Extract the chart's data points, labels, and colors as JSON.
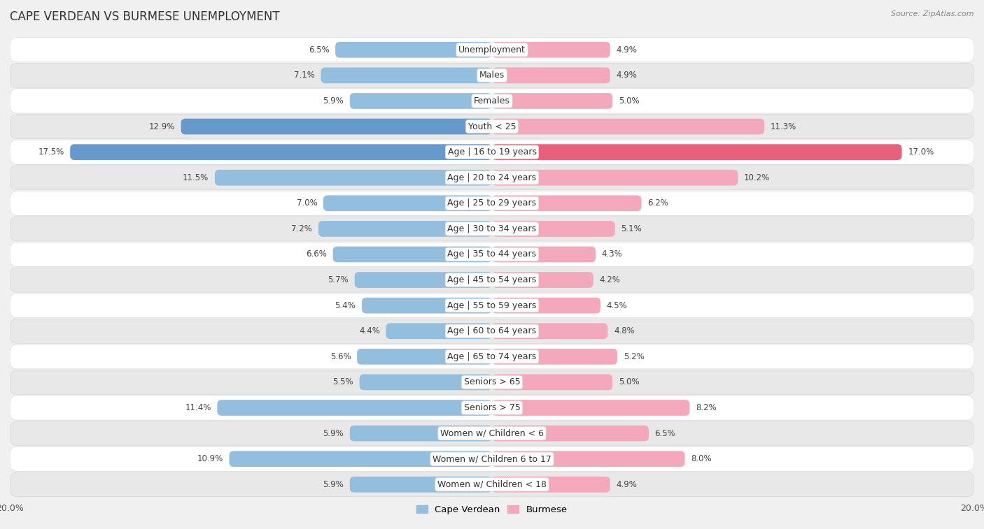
{
  "title": "CAPE VERDEAN VS BURMESE UNEMPLOYMENT",
  "source": "Source: ZipAtlas.com",
  "categories": [
    "Unemployment",
    "Males",
    "Females",
    "Youth < 25",
    "Age | 16 to 19 years",
    "Age | 20 to 24 years",
    "Age | 25 to 29 years",
    "Age | 30 to 34 years",
    "Age | 35 to 44 years",
    "Age | 45 to 54 years",
    "Age | 55 to 59 years",
    "Age | 60 to 64 years",
    "Age | 65 to 74 years",
    "Seniors > 65",
    "Seniors > 75",
    "Women w/ Children < 6",
    "Women w/ Children 6 to 17",
    "Women w/ Children < 18"
  ],
  "cape_verdean": [
    6.5,
    7.1,
    5.9,
    12.9,
    17.5,
    11.5,
    7.0,
    7.2,
    6.6,
    5.7,
    5.4,
    4.4,
    5.6,
    5.5,
    11.4,
    5.9,
    10.9,
    5.9
  ],
  "burmese": [
    4.9,
    4.9,
    5.0,
    11.3,
    17.0,
    10.2,
    6.2,
    5.1,
    4.3,
    4.2,
    4.5,
    4.8,
    5.2,
    5.0,
    8.2,
    6.5,
    8.0,
    4.9
  ],
  "cape_verdean_color": "#94bedd",
  "burmese_color": "#f4a8bc",
  "highlight_cape_verdean_rows": [
    3,
    4
  ],
  "highlight_burmese_rows": [
    4
  ],
  "highlight_cape_verdean_color": "#6699cc",
  "highlight_burmese_color": "#e8607a",
  "bar_height": 0.62,
  "xlim": 20.0,
  "bg_color": "#f0f0f0",
  "row_bg_white": "#ffffff",
  "row_bg_gray": "#e8e8e8",
  "title_fontsize": 12,
  "label_fontsize": 9,
  "value_fontsize": 8.5,
  "legend_fontsize": 9.5,
  "axis_label_fontsize": 9
}
